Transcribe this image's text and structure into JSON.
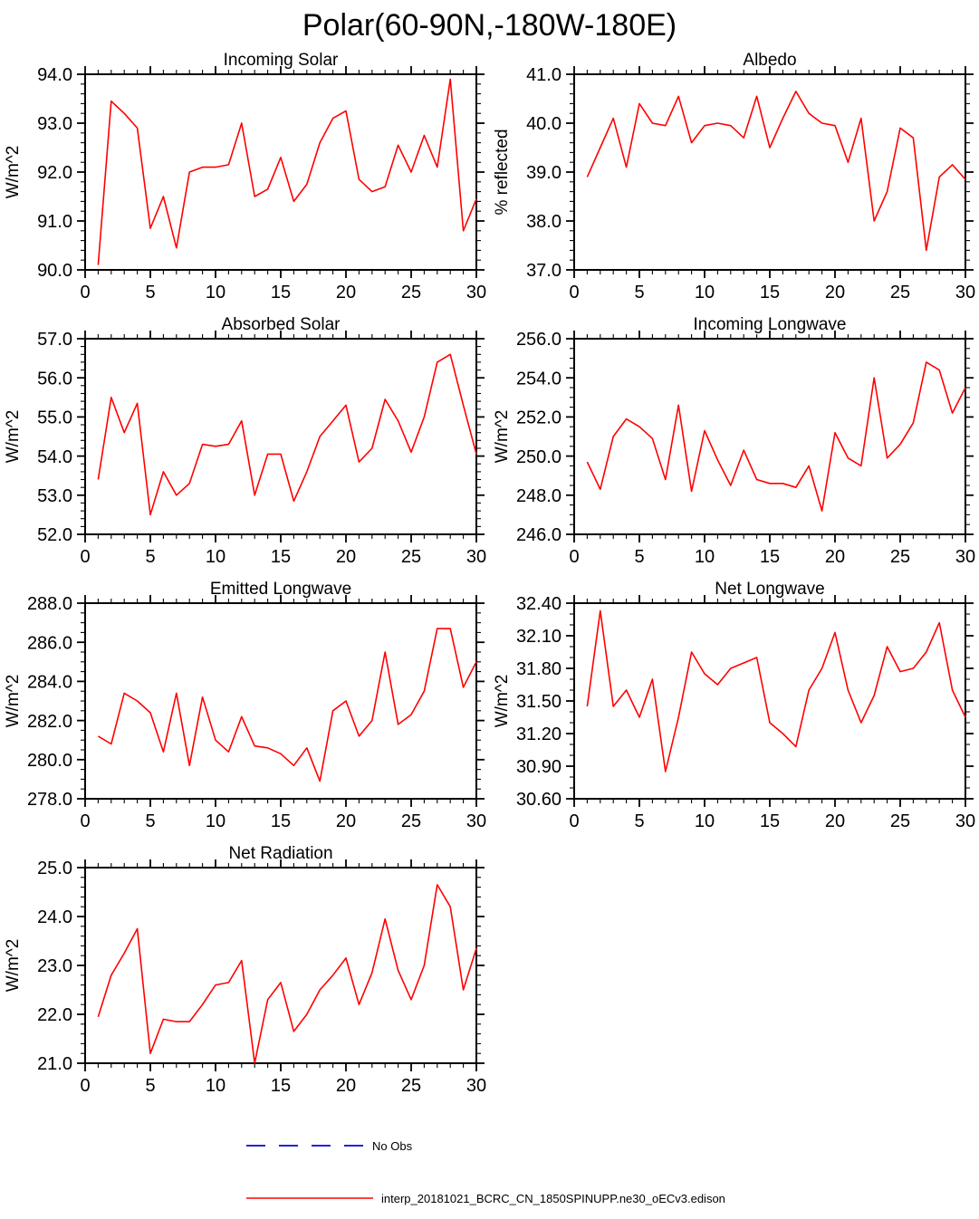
{
  "page_title": "Polar(60-90N,-180W-180E)",
  "series_color": "#ff0000",
  "no_obs_color": "#2222dd",
  "legend": [
    {
      "label": "No Obs",
      "color": "#2222dd",
      "style": "dashed"
    },
    {
      "label": "interp_20181021_BCRC_CN_1850SPINUPP.ne30_oECv3.edison",
      "color": "#ff0000",
      "style": "solid"
    }
  ],
  "chart_data": [
    {
      "type": "line",
      "title": "Incoming Solar",
      "ylabel": "W/m^2",
      "ylim": [
        90.0,
        94.0
      ],
      "ytick_step": 1.0,
      "ydecimals": 1,
      "yminor_div": 5,
      "xlim": [
        0,
        30
      ],
      "xtick_step": 5,
      "xminor_step": 1,
      "x_start": 1,
      "values": [
        90.1,
        93.45,
        93.2,
        92.9,
        90.85,
        91.5,
        90.45,
        92.0,
        92.1,
        92.1,
        92.15,
        93.0,
        91.5,
        91.65,
        92.3,
        91.4,
        91.75,
        92.6,
        93.1,
        93.25,
        91.85,
        91.6,
        91.7,
        92.55,
        92.0,
        92.75,
        92.1,
        93.9,
        90.8,
        91.45
      ]
    },
    {
      "type": "line",
      "title": "Albedo",
      "ylabel": "% reflected",
      "ylim": [
        37.0,
        41.0
      ],
      "ytick_step": 1.0,
      "ydecimals": 1,
      "yminor_div": 5,
      "xlim": [
        0,
        30
      ],
      "xtick_step": 5,
      "xminor_step": 1,
      "x_start": 1,
      "values": [
        38.9,
        39.5,
        40.1,
        39.1,
        40.4,
        40.0,
        39.95,
        40.55,
        39.6,
        39.95,
        40.0,
        39.95,
        39.7,
        40.55,
        39.5,
        40.1,
        40.65,
        40.2,
        40.0,
        39.95,
        39.2,
        40.1,
        38.0,
        38.6,
        39.9,
        39.7,
        37.4,
        38.9,
        39.15,
        38.85
      ]
    },
    {
      "type": "line",
      "title": "Absorbed Solar",
      "ylabel": "W/m^2",
      "ylim": [
        52.0,
        57.0
      ],
      "ytick_step": 1.0,
      "ydecimals": 1,
      "yminor_div": 5,
      "xlim": [
        0,
        30
      ],
      "xtick_step": 5,
      "xminor_step": 1,
      "x_start": 1,
      "values": [
        53.4,
        55.5,
        54.6,
        55.35,
        52.5,
        53.6,
        53.0,
        53.3,
        54.3,
        54.25,
        54.3,
        54.9,
        53.0,
        54.05,
        54.05,
        52.85,
        53.6,
        54.5,
        54.9,
        55.3,
        53.85,
        54.2,
        55.45,
        54.9,
        54.1,
        55.0,
        56.4,
        56.6,
        55.3,
        54.05
      ]
    },
    {
      "type": "line",
      "title": "Incoming Longwave",
      "ylabel": "W/m^2",
      "ylim": [
        246.0,
        256.0
      ],
      "ytick_step": 2.0,
      "ydecimals": 1,
      "yminor_div": 4,
      "xlim": [
        0,
        30
      ],
      "xtick_step": 5,
      "xminor_step": 1,
      "x_start": 1,
      "values": [
        249.7,
        248.3,
        251.0,
        251.9,
        251.5,
        250.9,
        248.8,
        252.6,
        248.2,
        251.3,
        249.8,
        248.5,
        250.3,
        248.8,
        248.6,
        248.6,
        248.4,
        249.5,
        247.2,
        251.2,
        249.9,
        249.5,
        254.0,
        249.9,
        250.6,
        251.7,
        254.8,
        254.4,
        252.2,
        253.5
      ]
    },
    {
      "type": "line",
      "title": "Emitted Longwave",
      "ylabel": "W/m^2",
      "ylim": [
        278.0,
        288.0
      ],
      "ytick_step": 2.0,
      "ydecimals": 1,
      "yminor_div": 4,
      "xlim": [
        0,
        30
      ],
      "xtick_step": 5,
      "xminor_step": 1,
      "x_start": 1,
      "values": [
        281.2,
        280.8,
        283.4,
        283.0,
        282.4,
        280.4,
        283.4,
        279.7,
        283.2,
        281.0,
        280.4,
        282.2,
        280.7,
        280.6,
        280.3,
        279.7,
        280.6,
        278.9,
        282.5,
        283.0,
        281.2,
        282.0,
        285.5,
        281.8,
        282.3,
        283.5,
        286.7,
        286.7,
        283.7,
        285.0
      ]
    },
    {
      "type": "line",
      "title": "Net Longwave",
      "ylabel": "W/m^2",
      "ylim": [
        30.6,
        32.4
      ],
      "ytick_step": 0.3,
      "ydecimals": 2,
      "yminor_div": 3,
      "xlim": [
        0,
        30
      ],
      "xtick_step": 5,
      "xminor_step": 1,
      "x_start": 1,
      "values": [
        31.45,
        32.33,
        31.45,
        31.6,
        31.35,
        31.7,
        30.85,
        31.35,
        31.95,
        31.75,
        31.65,
        31.8,
        31.85,
        31.9,
        31.3,
        31.2,
        31.08,
        31.6,
        31.8,
        32.13,
        31.6,
        31.3,
        31.55,
        32.0,
        31.77,
        31.8,
        31.95,
        32.22,
        31.6,
        31.35
      ]
    },
    {
      "type": "line",
      "title": "Net Radiation",
      "ylabel": "W/m^2",
      "ylim": [
        21.0,
        25.0
      ],
      "ytick_step": 1.0,
      "ydecimals": 1,
      "yminor_div": 5,
      "xlim": [
        0,
        30
      ],
      "xtick_step": 5,
      "xminor_step": 1,
      "x_start": 1,
      "values": [
        21.95,
        22.8,
        23.25,
        23.75,
        21.2,
        21.9,
        21.85,
        21.85,
        22.2,
        22.6,
        22.65,
        23.1,
        21.0,
        22.3,
        22.65,
        21.65,
        22.0,
        22.5,
        22.8,
        23.15,
        22.2,
        22.85,
        23.95,
        22.9,
        22.3,
        23.0,
        24.65,
        24.2,
        22.5,
        23.35
      ]
    }
  ]
}
